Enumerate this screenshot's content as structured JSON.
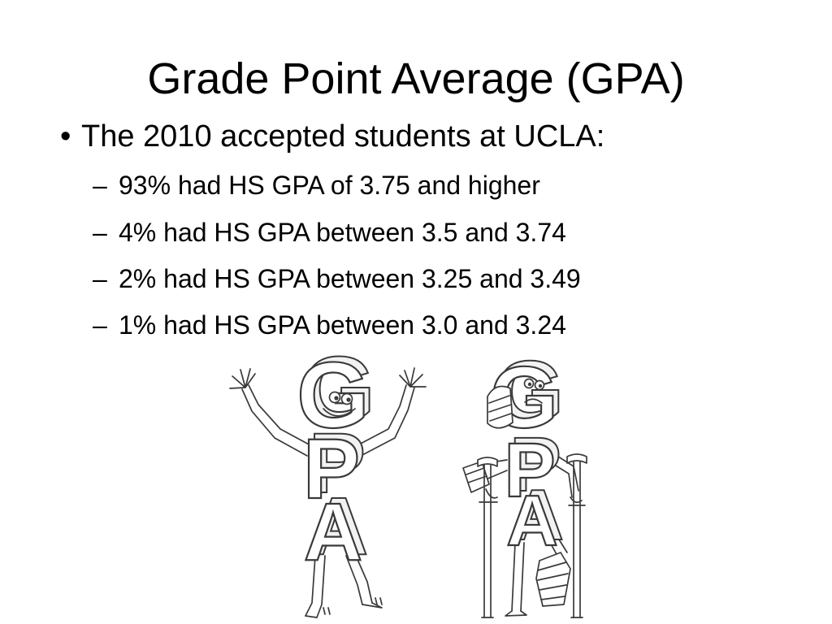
{
  "slide": {
    "title": "Grade Point Average (GPA)",
    "bullet_marker": "•",
    "bullet": "The 2010 accepted students at UCLA:",
    "sub_marker": "–",
    "sub_bullets": [
      "93% had HS GPA of 3.75 and higher",
      "4% had HS GPA between 3.5 and 3.74",
      "2% had HS GPA between 3.25 and 3.49",
      "1% had HS GPA between 3.0 and 3.24"
    ]
  },
  "illustration": {
    "left_figure": {
      "letters": [
        "G",
        "P",
        "A"
      ]
    },
    "right_figure": {
      "letters": [
        "G",
        "P",
        "A"
      ]
    }
  },
  "colors": {
    "background": "#ffffff",
    "text": "#000000",
    "sketch": "#3a3a3a"
  }
}
